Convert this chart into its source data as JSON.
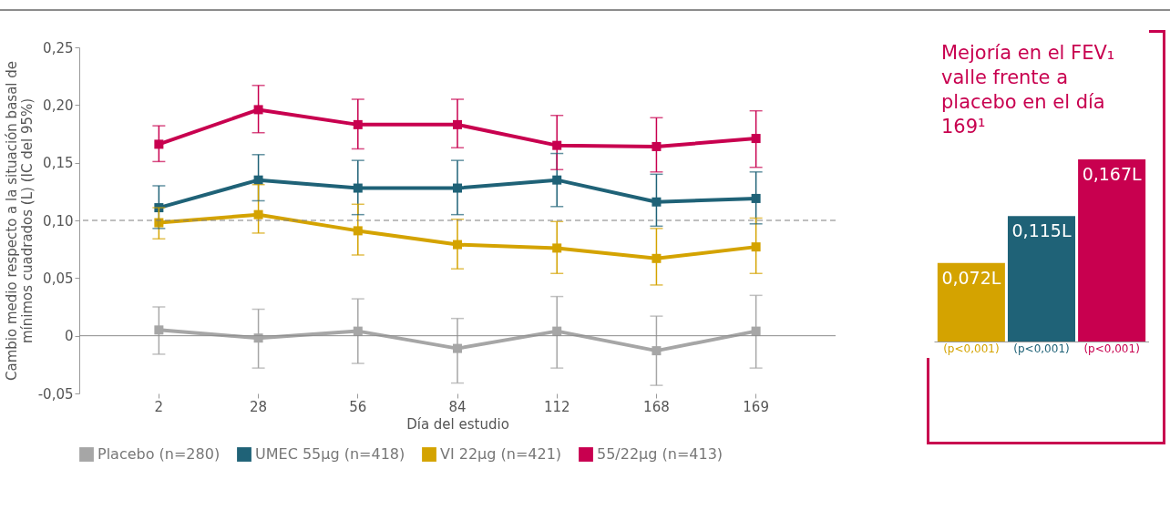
{
  "chart_data": [
    {
      "type": "line",
      "ylabel": "Cambio medio respecto a la situación basal de mínimos cuadrados (L) (IC del 95%)",
      "xlabel": "Día del estudio",
      "categories": [
        "2",
        "28",
        "56",
        "84",
        "112",
        "168",
        "169"
      ],
      "ylim": [
        -0.05,
        0.25
      ],
      "yticks": [
        {
          "value": -0.05,
          "label": "-0,05"
        },
        {
          "value": 0,
          "label": "0"
        },
        {
          "value": 0.05,
          "label": "0,05"
        },
        {
          "value": 0.1,
          "label": "0,10"
        },
        {
          "value": 0.15,
          "label": "0,15"
        },
        {
          "value": 0.2,
          "label": "0,20"
        },
        {
          "value": 0.25,
          "label": "0,25"
        }
      ],
      "marker": "square",
      "legend": "bottom",
      "grid": false,
      "ref_lines": [
        {
          "axis": "y",
          "value": 0.1,
          "color": "#7f7f7f",
          "line_style": "dashed"
        },
        {
          "axis": "y",
          "value": 0,
          "color": "#8c8c8c",
          "line_style": "solid"
        }
      ],
      "series": [
        {
          "name": "Placebo (n=280)",
          "color": "#a6a6a6",
          "values": [
            0.005,
            -0.002,
            0.004,
            -0.011,
            0.004,
            -0.013,
            0.004
          ],
          "errors": [
            [
              -0.016,
              0.025
            ],
            [
              -0.028,
              0.023
            ],
            [
              -0.024,
              0.032
            ],
            [
              -0.041,
              0.015
            ],
            [
              -0.028,
              0.034
            ],
            [
              -0.043,
              0.017
            ],
            [
              -0.028,
              0.035
            ]
          ]
        },
        {
          "name": "UMEC 55μg (n=418)",
          "color": "#1f6277",
          "values": [
            0.111,
            0.135,
            0.128,
            0.128,
            0.135,
            0.116,
            0.119
          ],
          "errors": [
            [
              0.093,
              0.13
            ],
            [
              0.117,
              0.157
            ],
            [
              0.105,
              0.152
            ],
            [
              0.105,
              0.152
            ],
            [
              0.112,
              0.158
            ],
            [
              0.095,
              0.14
            ],
            [
              0.097,
              0.142
            ]
          ]
        },
        {
          "name": "VI 22μg (n=421)",
          "color": "#d4a300",
          "values": [
            0.098,
            0.105,
            0.091,
            0.079,
            0.076,
            0.067,
            0.077
          ],
          "errors": [
            [
              0.084,
              0.111
            ],
            [
              0.089,
              0.131
            ],
            [
              0.07,
              0.114
            ],
            [
              0.058,
              0.101
            ],
            [
              0.054,
              0.099
            ],
            [
              0.044,
              0.093
            ],
            [
              0.054,
              0.102
            ]
          ]
        },
        {
          "name": "55/22μg (n=413)",
          "color": "#c8004f",
          "values": [
            0.166,
            0.196,
            0.183,
            0.183,
            0.165,
            0.164,
            0.171
          ],
          "errors": [
            [
              0.151,
              0.182
            ],
            [
              0.176,
              0.217
            ],
            [
              0.162,
              0.205
            ],
            [
              0.163,
              0.205
            ],
            [
              0.144,
              0.191
            ],
            [
              0.142,
              0.189
            ],
            [
              0.146,
              0.195
            ]
          ]
        }
      ]
    },
    {
      "type": "bar",
      "title": "Mejoría en el FEV₁ valle frente a placebo en el día 169¹",
      "categories": [
        "(p<0,001)",
        "(p<0,001)",
        "(p<0,001)"
      ],
      "values": [
        0.072,
        0.115,
        0.167
      ],
      "colors": [
        "#d4a300",
        "#1f6277",
        "#c8004f"
      ],
      "value_labels": [
        "0,072L",
        "0,115L",
        "0,167L"
      ]
    }
  ]
}
